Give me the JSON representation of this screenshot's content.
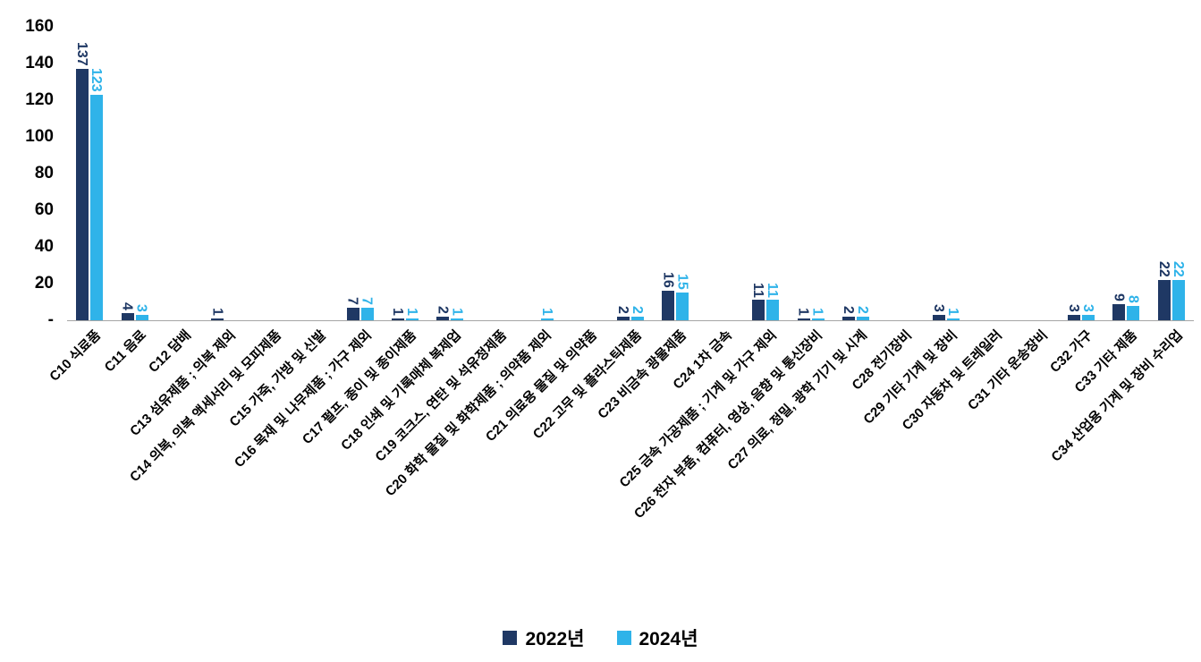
{
  "chart_data": {
    "type": "bar",
    "title": "",
    "categories": [
      "C10 식료품",
      "C11 음료",
      "C12 담배",
      "C13 섬유제품 ; 의복 제외",
      "C14 의복, 의복 액세서리 및 모피제품",
      "C15 가죽, 가방 및 신발",
      "C16 목재 및 나무제품 ; 가구 제외",
      "C17 펄프, 종이 및 종이제품",
      "C18 인쇄 및 기록매체 복제업",
      "C19 코크스, 연탄 및 석유정제품",
      "C20 화학 물질 및 화학제품 ; 의약품 제외",
      "C21 의료용 물질 및 의약품",
      "C22 고무 및 플라스틱제품",
      "C23 비금속 광물제품",
      "C24 1차 금속",
      "C25 금속 가공제품 ; 기계 및 가구 제외",
      "C26 전자 부품, 컴퓨터, 영상, 음향 및 통신장비",
      "C27 의료, 정밀, 광학 기기 및 시계",
      "C28 전기장비",
      "C29 기타 기계 및 장비",
      "C30 자동차 및 트레일러",
      "C31 기타 운송장비",
      "C32 가구",
      "C33 기타 제품",
      "C34 산업용 기계 및 장비 수리업"
    ],
    "series": [
      {
        "name": "2022년",
        "color": "#1F3864",
        "values": [
          137,
          4,
          0,
          1,
          0,
          0,
          7,
          1,
          2,
          0,
          0,
          0,
          2,
          16,
          0,
          11,
          1,
          2,
          0,
          3,
          0,
          0,
          3,
          9,
          22
        ]
      },
      {
        "name": "2024년",
        "color": "#2FB3E9",
        "values": [
          123,
          3,
          0,
          0,
          0,
          0,
          7,
          1,
          1,
          0,
          1,
          0,
          2,
          15,
          0,
          11,
          1,
          2,
          0,
          1,
          0,
          0,
          3,
          8,
          22
        ]
      }
    ],
    "ylim": [
      0,
      160
    ],
    "yticks": [
      0,
      20,
      40,
      60,
      80,
      100,
      120,
      140,
      160
    ],
    "ytick_labels": [
      "-",
      "20",
      "40",
      "60",
      "80",
      "100",
      "120",
      "140",
      "160"
    ],
    "grid": false,
    "legend_position": "bottom",
    "data_label_style": "rotated-vertical, colored per series, above bars, hidden when value is 0",
    "axis_color": "#A6A6A6",
    "text_color": "#000000",
    "background_color": "#FFFFFF"
  }
}
